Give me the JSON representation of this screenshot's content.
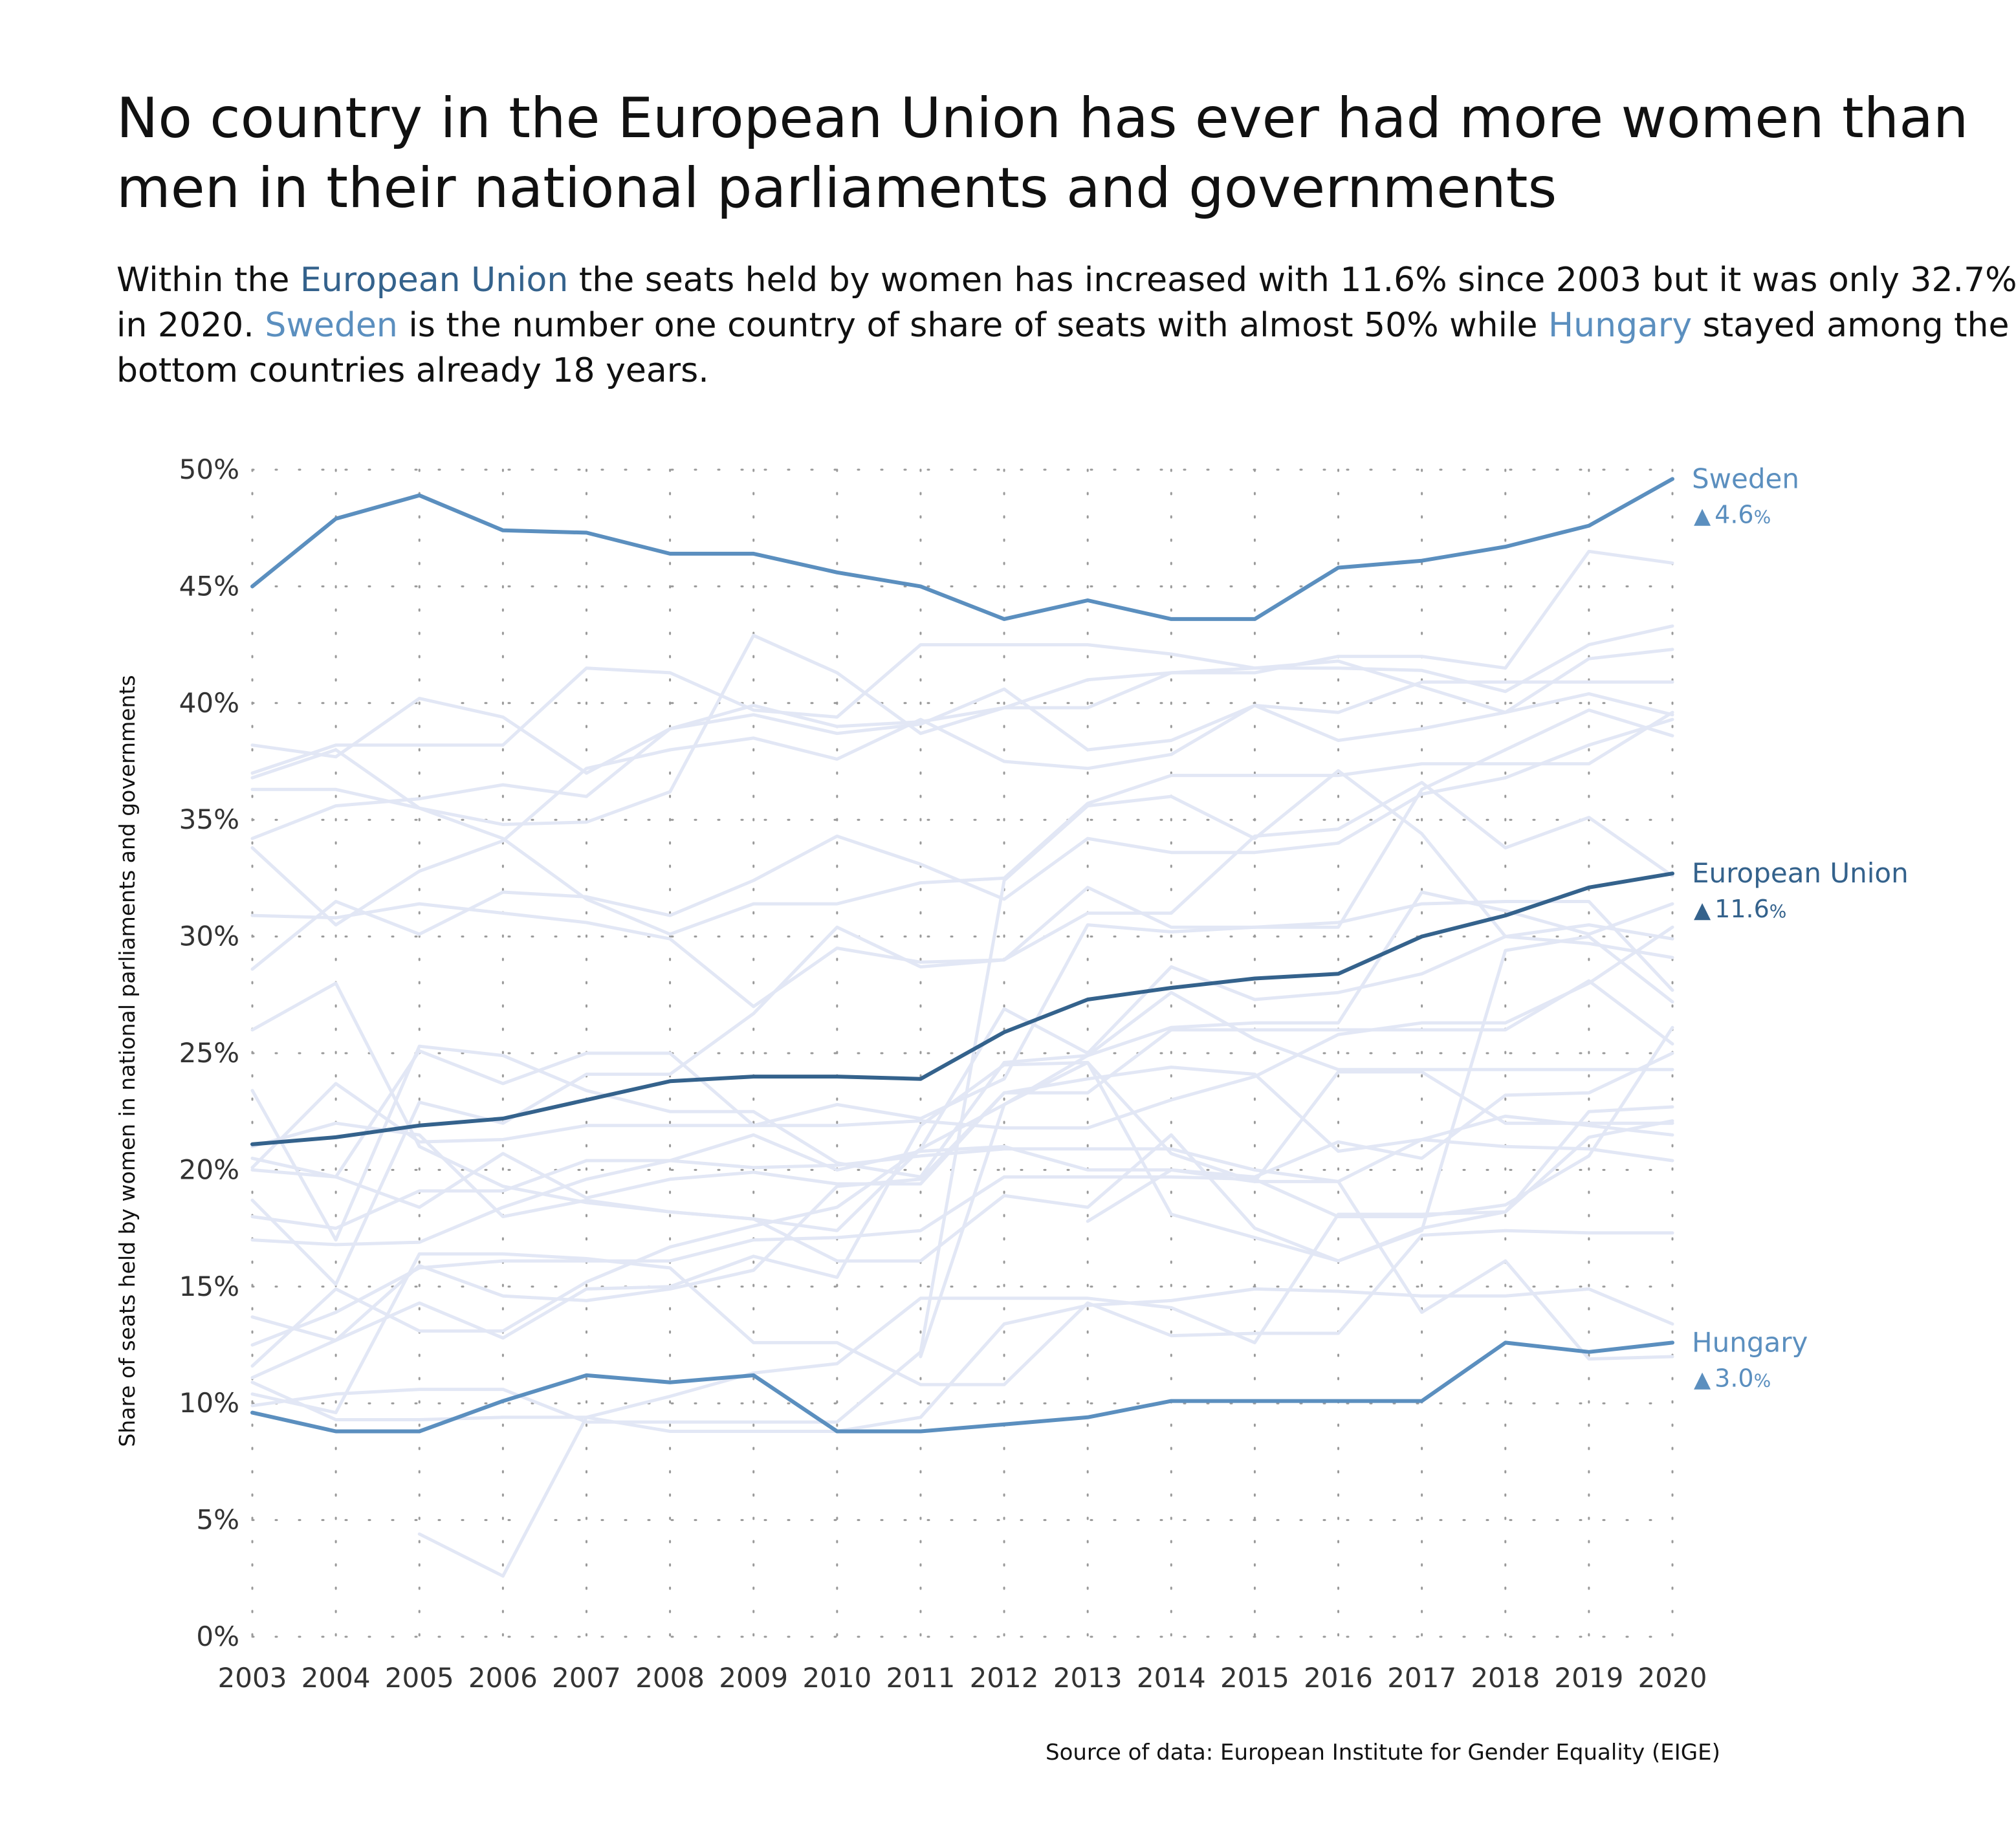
{
  "title_lines": [
    "No country in the European Union has ever had more women than",
    "men in their national parliaments and governments"
  ],
  "subtitle_lines": [
    [
      {
        "text": "Within the ",
        "hl": null
      },
      {
        "text": "European Union",
        "hl": "eu"
      },
      {
        "text": " the seats held by women has increased with 11.6% since 2003 but it was only 32.7%",
        "hl": null
      }
    ],
    [
      {
        "text": "in 2020. ",
        "hl": null
      },
      {
        "text": "Sweden",
        "hl": "sweden"
      },
      {
        "text": " is the number one country of share of seats with almost 50% while ",
        "hl": null
      },
      {
        "text": "Hungary",
        "hl": "hungary"
      },
      {
        "text": " stayed among the",
        "hl": null
      }
    ],
    [
      {
        "text": "bottom countries already 18 years.",
        "hl": null
      }
    ]
  ],
  "source_label": "Source of data: ",
  "source_name": "European Institute for Gender Equality (EIGE)",
  "colors": {
    "background": "#ffffff",
    "text": "#111111",
    "tick_text": "#333333",
    "grid_dot": "#9a9a9a",
    "other_countries": "#e2e7f5",
    "eu": "#34628c",
    "sweden": "#5b8fbf",
    "hungary": "#5b8fbf"
  },
  "chart_data": {
    "type": "line",
    "ylabel": "Share of seats held by women in national parliaments and governments",
    "xlabel": "",
    "ylim": [
      0,
      50
    ],
    "yticks": [
      0,
      5,
      10,
      15,
      20,
      25,
      30,
      35,
      40,
      45,
      50
    ],
    "ytick_labels": [
      "0%",
      "5%",
      "10%",
      "15%",
      "20%",
      "25%",
      "30%",
      "35%",
      "40%",
      "45%",
      "50%"
    ],
    "x": [
      2003,
      2004,
      2005,
      2006,
      2007,
      2008,
      2009,
      2010,
      2011,
      2012,
      2013,
      2014,
      2015,
      2016,
      2017,
      2018,
      2019,
      2020
    ],
    "grid": "dotted",
    "highlight_series": [
      {
        "name": "Sweden",
        "key": "sweden",
        "change": "4.6",
        "change_symbol": "▲",
        "change_unit": "%",
        "values": [
          45.0,
          47.9,
          48.9,
          47.4,
          47.3,
          46.4,
          46.4,
          45.6,
          45.0,
          43.6,
          44.4,
          43.6,
          43.6,
          45.8,
          46.1,
          46.7,
          47.6,
          49.6
        ]
      },
      {
        "name": "European Union",
        "key": "eu",
        "change": "11.6",
        "change_symbol": "▲",
        "change_unit": "%",
        "values": [
          21.1,
          21.4,
          21.9,
          22.2,
          23.0,
          23.8,
          24.0,
          24.0,
          23.9,
          25.9,
          27.3,
          27.8,
          28.2,
          28.4,
          30.0,
          30.9,
          32.1,
          32.7
        ]
      },
      {
        "name": "Hungary",
        "key": "hungary",
        "change": "3.0",
        "change_symbol": "▲",
        "change_unit": "%",
        "values": [
          9.6,
          8.8,
          8.8,
          10.1,
          11.2,
          10.9,
          11.2,
          8.8,
          8.8,
          9.1,
          9.4,
          10.1,
          10.1,
          10.1,
          10.1,
          12.6,
          12.2,
          12.6
        ]
      }
    ],
    "background_series": [
      {
        "values": [
          38.2,
          37.7,
          40.2,
          39.4,
          37.0,
          38.9,
          39.5,
          38.7,
          39.1,
          40.6,
          38.0,
          38.4,
          39.9,
          38.4,
          38.9,
          39.6,
          40.4,
          39.5
        ]
      },
      {
        "values": [
          37.0,
          38.2,
          38.2,
          38.2,
          41.5,
          41.3,
          39.7,
          39.4,
          42.5,
          42.5,
          42.5,
          42.1,
          41.5,
          41.5,
          41.4,
          40.5,
          42.5,
          43.3
        ]
      },
      {
        "values": [
          36.3,
          36.3,
          35.5,
          34.8,
          34.9,
          36.2,
          42.9,
          41.3,
          38.7,
          39.8,
          41.0,
          41.3,
          41.3,
          42.0,
          42.0,
          41.5,
          46.5,
          46.0
        ]
      },
      {
        "values": [
          36.8,
          38.0,
          35.5,
          34.2,
          31.6,
          30.1,
          31.4,
          31.4,
          32.3,
          32.5,
          35.7,
          36.9,
          36.9,
          36.9,
          37.4,
          37.4,
          37.4,
          39.6
        ]
      },
      {
        "values": [
          34.2,
          35.6,
          35.9,
          36.5,
          36.0,
          38.9,
          39.9,
          39.0,
          39.2,
          39.8,
          39.8,
          41.3,
          41.5,
          41.8,
          40.7,
          39.6,
          41.9,
          42.3
        ]
      },
      {
        "values": [
          33.8,
          30.5,
          32.8,
          34.1,
          37.2,
          38.0,
          38.5,
          37.6,
          39.3,
          37.5,
          37.2,
          37.8,
          39.9,
          39.6,
          40.9,
          40.9,
          40.9,
          40.9
        ]
      },
      {
        "values": [
          30.9,
          30.8,
          31.4,
          31.0,
          30.6,
          29.9,
          27.0,
          29.5,
          28.9,
          29.0,
          32.1,
          30.4,
          30.4,
          30.4,
          36.3,
          38.0,
          39.7,
          38.6
        ]
      },
      {
        "values": [
          28.6,
          31.5,
          30.1,
          31.9,
          31.7,
          30.9,
          32.4,
          34.3,
          33.1,
          31.6,
          34.2,
          33.6,
          33.6,
          34.0,
          36.1,
          36.8,
          38.2,
          39.3
        ]
      },
      {
        "values": [
          26.0,
          28.0,
          21.0,
          19.3,
          18.6,
          18.2,
          17.9,
          17.4,
          20.9,
          26.9,
          25.0,
          28.7,
          27.3,
          27.6,
          28.4,
          30.0,
          30.5,
          29.9
        ]
      },
      {
        "values": [
          23.4,
          17.0,
          25.3,
          24.9,
          23.4,
          22.5,
          22.5,
          20.3,
          19.7,
          24.6,
          24.9,
          26.1,
          26.3,
          26.3,
          31.9,
          31.1,
          30.1,
          31.4
        ]
      },
      {
        "values": [
          20.5,
          19.7,
          25.1,
          23.7,
          25.0,
          25.0,
          21.9,
          22.8,
          22.2,
          23.9,
          30.5,
          30.2,
          30.4,
          30.6,
          31.4,
          31.5,
          31.5,
          27.7
        ]
      },
      {
        "values": [
          20.1,
          23.7,
          21.2,
          21.3,
          21.9,
          21.9,
          21.9,
          21.9,
          22.1,
          21.8,
          21.8,
          23.0,
          24.0,
          25.8,
          26.3,
          26.3,
          28.0,
          30.4
        ]
      },
      {
        "values": [
          18.7,
          15.1,
          22.9,
          22.0,
          24.1,
          24.1,
          26.7,
          30.4,
          28.7,
          29.0,
          31.0,
          31.0,
          34.3,
          34.6,
          36.6,
          33.8,
          35.1,
          32.6
        ]
      },
      {
        "values": [
          17.0,
          16.8,
          16.9,
          18.4,
          19.6,
          20.4,
          20.1,
          20.2,
          20.6,
          20.9,
          20.9,
          20.9,
          20.0,
          19.5,
          21.3,
          21.0,
          20.9,
          20.4
        ]
      },
      {
        "values": [
          13.7,
          12.7,
          15.9,
          14.6,
          14.4,
          14.9,
          15.7,
          19.3,
          19.6,
          23.3,
          23.9,
          24.4,
          24.1,
          20.8,
          21.3,
          22.3,
          21.9,
          21.5
        ]
      },
      {
        "values": [
          12.5,
          13.9,
          15.8,
          16.1,
          16.1,
          16.1,
          17.0,
          17.1,
          17.4,
          19.7,
          19.7,
          19.7,
          19.6,
          18.0,
          18.0,
          18.5,
          20.6,
          26.1
        ]
      },
      {
        "values": [
          11.6,
          14.9,
          13.1,
          13.1,
          15.2,
          16.7,
          17.6,
          18.4,
          20.9,
          22.8,
          24.9,
          27.6,
          25.6,
          24.3,
          24.3,
          24.3,
          24.3,
          24.3
        ]
      },
      {
        "values": [
          11.1,
          12.7,
          14.3,
          12.8,
          14.9,
          15.0,
          16.3,
          15.4,
          21.9,
          24.5,
          24.6,
          20.7,
          19.5,
          19.5,
          13.9,
          16.1,
          11.9,
          12.0
        ]
      },
      {
        "values": [
          10.9,
          9.3,
          9.3,
          9.4,
          9.4,
          8.8,
          8.8,
          8.8,
          9.4,
          13.4,
          14.2,
          14.4,
          14.9,
          14.8,
          14.6,
          14.6,
          14.9,
          13.4
        ]
      },
      {
        "values": [
          10.4,
          9.6,
          16.4,
          16.4,
          16.2,
          15.8,
          12.6,
          12.6,
          10.8,
          10.8,
          14.3,
          12.9,
          13.0,
          13.0,
          17.2,
          17.4,
          17.3,
          17.3
        ]
      },
      {
        "values": [
          9.9,
          10.4,
          10.6,
          10.6,
          9.2,
          9.2,
          9.2,
          9.2,
          12.2,
          32.4,
          35.6,
          36.0,
          34.2,
          37.1,
          34.4,
          30.0,
          29.7,
          29.1
        ]
      },
      {
        "values": [
          null,
          null,
          4.4,
          2.6,
          9.4,
          10.3,
          11.3,
          11.7,
          14.5,
          14.5,
          14.5,
          14.1,
          12.6,
          18.1,
          18.1,
          18.2,
          21.4,
          22.1
        ]
      },
      {
        "values": [
          20.0,
          19.7,
          18.4,
          20.7,
          18.8,
          19.6,
          19.9,
          19.4,
          19.4,
          23.3,
          23.3,
          26.0,
          26.0,
          26.0,
          26.0,
          26.0,
          28.1,
          25.4
        ]
      },
      {
        "values": [
          18.0,
          17.5,
          19.1,
          19.1,
          20.4,
          20.4,
          21.5,
          20.0,
          20.8,
          21.0,
          20.0,
          20.0,
          19.5,
          24.2,
          24.2,
          22.0,
          22.0,
          22.0
        ]
      },
      {
        "values": [
          21.0,
          22.0,
          21.5,
          18.0,
          18.7,
          18.2,
          17.9,
          16.1,
          16.1,
          18.9,
          18.4,
          21.5,
          17.5,
          16.1,
          17.5,
          18.2,
          22.5,
          22.7
        ]
      },
      {
        "values": [
          null,
          null,
          null,
          null,
          null,
          null,
          null,
          null,
          12.0,
          22.8,
          24.6,
          18.1,
          17.1,
          16.1,
          17.4,
          29.4,
          30.0,
          27.2
        ]
      },
      {
        "values": [
          null,
          null,
          null,
          null,
          null,
          null,
          null,
          null,
          null,
          null,
          17.8,
          20.0,
          19.7,
          21.2,
          20.5,
          23.2,
          23.3,
          25.0
        ]
      }
    ]
  }
}
